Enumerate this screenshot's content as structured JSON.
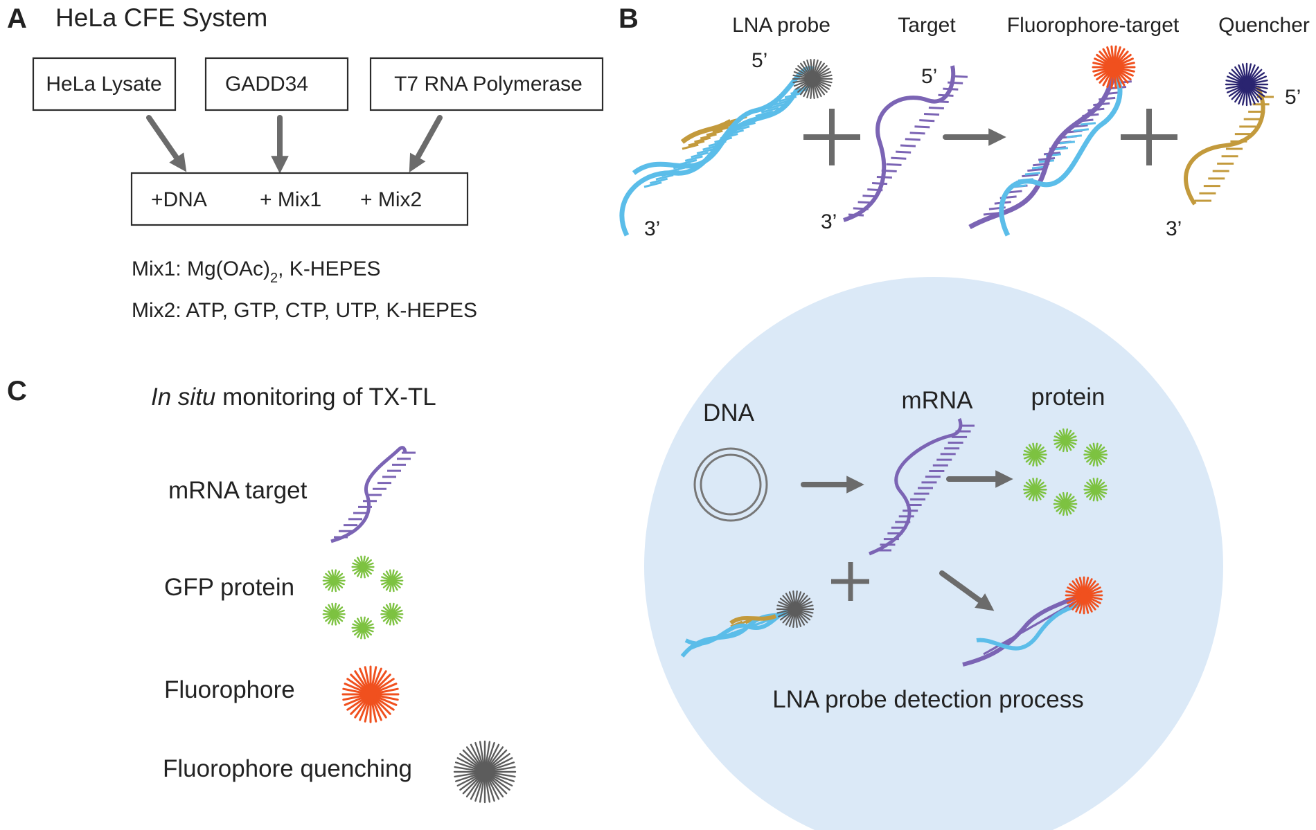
{
  "panelA": {
    "letter": "A",
    "title": "HeLa CFE System",
    "inputs": [
      "HeLa Lysate",
      "GADD34",
      "T7 RNA Polymerase"
    ],
    "reaction": [
      "+DNA",
      "+ Mix1",
      "+ Mix2"
    ],
    "mix1_prefix": "Mix1: Mg(OAc)",
    "mix1_sub": "2",
    "mix1_suffix": ", K-HEPES",
    "mix2": "Mix2: ATP, GTP, CTP, UTP, K-HEPES"
  },
  "panelB": {
    "letter": "B",
    "labels": [
      "LNA probe",
      "Target",
      "Fluorophore-target",
      "Quencher"
    ],
    "end5": "5’",
    "end3": "3’"
  },
  "panelC": {
    "letter": "C",
    "title_italic": "In situ",
    "title_rest": " monitoring of TX-TL",
    "legend": [
      "mRNA target",
      "GFP protein",
      "Fluorophore",
      "Fluorophore quenching"
    ],
    "circle": {
      "dna": "DNA",
      "mrna": "mRNA",
      "protein": "protein",
      "caption": "LNA probe detection process"
    }
  },
  "colors": {
    "lna_blue": "#5bbde9",
    "probe_gold": "#c39a3c",
    "target_purple": "#7b64b4",
    "fluorophore_orange": "#f0501e",
    "quenched_gray": "#5c5c5c",
    "quencher_navy": "#2a2470",
    "gfp_green": "#7dc241",
    "circle_fill": "#dbe9f7",
    "arrow_gray": "#6b6b6b"
  }
}
